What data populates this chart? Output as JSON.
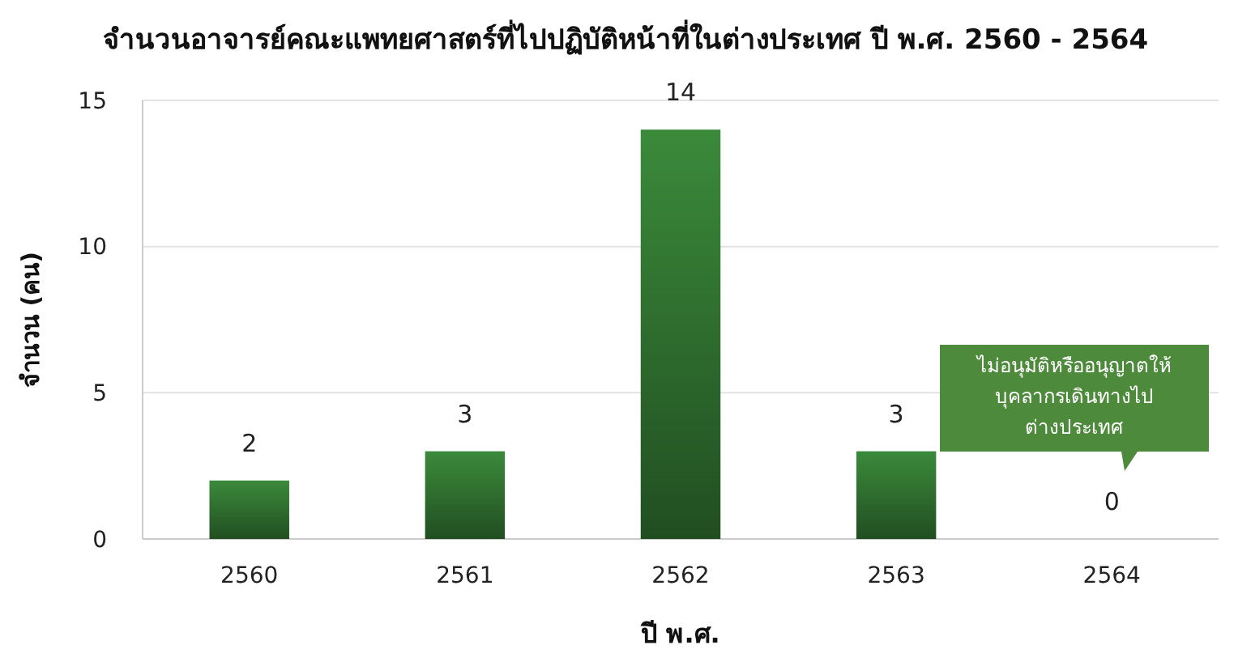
{
  "chart_data": {
    "type": "bar",
    "title": "จำนวนอาจารย์คณะแพทยศาสตร์ที่ไปปฏิบัติหน้าที่ในต่างประเทศ ปี พ.ศ. 2560 - 2564",
    "xlabel": "ปี พ.ศ.",
    "ylabel": "จำนวน (คน)",
    "categories": [
      "2560",
      "2561",
      "2562",
      "2563",
      "2564"
    ],
    "values": [
      2,
      3,
      14,
      3,
      0
    ],
    "color": "#3b8a3b",
    "ylim": [
      0,
      15
    ],
    "yticks": [
      0,
      5,
      10,
      15
    ],
    "grid": "y",
    "data_labels": true,
    "annotations": [
      "ไม่อนุมัติหรืออนุญาตให้\nบุคลากรเดินทางไป\nต่างประเทศ"
    ]
  }
}
